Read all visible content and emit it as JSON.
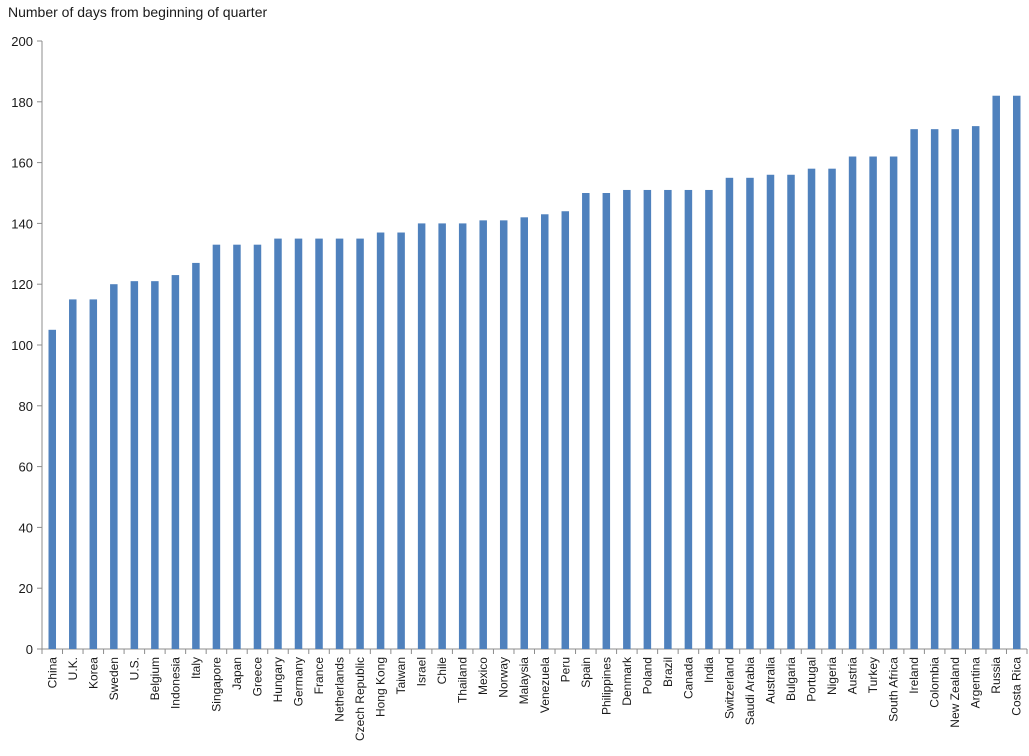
{
  "chart_data": {
    "type": "bar",
    "title": "",
    "xlabel": "",
    "ylabel": "Number of days from beginning of quarter",
    "ylim": [
      0,
      200
    ],
    "yticks": [
      0,
      20,
      40,
      60,
      80,
      100,
      120,
      140,
      160,
      180,
      200
    ],
    "grid": false,
    "legend": "none",
    "bar_color": "#4f81bd",
    "categories": [
      "China",
      "U.K.",
      "Korea",
      "Sweden",
      "U.S.",
      "Belgium",
      "Indonesia",
      "Italy",
      "Singapore",
      "Japan",
      "Greece",
      "Hungary",
      "Germany",
      "France",
      "Netherlands",
      "Czech Republic",
      "Hong Kong",
      "Taiwan",
      "Israel",
      "Chile",
      "Thailand",
      "Mexico",
      "Norway",
      "Malaysia",
      "Venezuela",
      "Peru",
      "Spain",
      "Philippines",
      "Denmark",
      "Poland",
      "Brazil",
      "Canada",
      "India",
      "Switzerland",
      "Saudi Arabia",
      "Australia",
      "Bulgaria",
      "Portugal",
      "Nigeria",
      "Austria",
      "Turkey",
      "South Africa",
      "Ireland",
      "Colombia",
      "New Zealand",
      "Argentina",
      "Russia",
      "Costa Rica"
    ],
    "values": [
      105,
      115,
      115,
      120,
      121,
      121,
      123,
      127,
      133,
      133,
      133,
      135,
      135,
      135,
      135,
      135,
      137,
      137,
      140,
      140,
      140,
      141,
      141,
      142,
      143,
      144,
      150,
      150,
      151,
      151,
      151,
      151,
      151,
      155,
      155,
      156,
      156,
      158,
      158,
      162,
      162,
      162,
      171,
      171,
      171,
      172,
      182,
      182
    ]
  }
}
